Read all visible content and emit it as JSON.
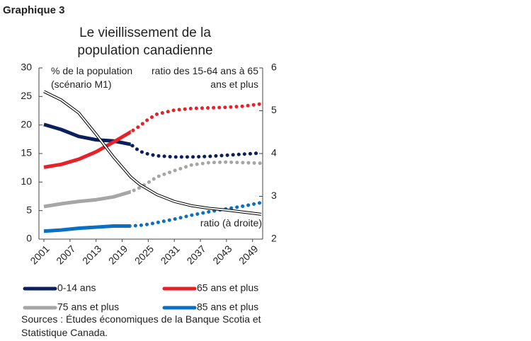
{
  "header": "Graphique 3",
  "chart_data": {
    "type": "line",
    "title": "Le vieillissement de la population canadienne",
    "y_annotation": "% de la population (scénario M1)",
    "y2_annotation": "ratio des 15-64 ans à 65 ans et plus",
    "line_annotation": "ratio (à droite)",
    "x": [
      2001,
      2005,
      2009,
      2013,
      2017,
      2021,
      2023,
      2025,
      2027,
      2031,
      2035,
      2039,
      2043,
      2047,
      2051
    ],
    "xlim": [
      2001,
      2051
    ],
    "xticks": [
      2001,
      2007,
      2013,
      2019,
      2025,
      2031,
      2037,
      2043,
      2049
    ],
    "ylim": [
      0,
      30
    ],
    "yticks": [
      0,
      5,
      10,
      15,
      20,
      25,
      30
    ],
    "y2lim": [
      2,
      6
    ],
    "y2ticks": [
      2,
      3,
      4,
      5,
      6
    ],
    "solid_until": 2021,
    "series": [
      {
        "name": "0-14 ans",
        "color": "#0b1f5c",
        "values": [
          20.1,
          19.2,
          18.0,
          17.4,
          17.2,
          16.6,
          15.4,
          14.9,
          14.6,
          14.4,
          14.4,
          14.5,
          14.7,
          14.9,
          15.1
        ]
      },
      {
        "name": "65 ans et plus",
        "color": "#e8202a",
        "values": [
          12.6,
          13.1,
          14.0,
          15.3,
          17.0,
          18.8,
          19.8,
          21.0,
          21.9,
          22.6,
          22.9,
          23.0,
          23.1,
          23.3,
          23.7
        ]
      },
      {
        "name": "75 ans et plus",
        "color": "#a6a6a6",
        "values": [
          5.7,
          6.2,
          6.6,
          6.9,
          7.4,
          8.3,
          9.0,
          9.9,
          10.9,
          12.0,
          13.0,
          13.4,
          13.5,
          13.4,
          13.3
        ]
      },
      {
        "name": "85 ans et plus",
        "color": "#0b6fc2",
        "values": [
          1.4,
          1.6,
          1.9,
          2.1,
          2.3,
          2.3,
          2.4,
          2.6,
          2.9,
          3.5,
          4.2,
          4.8,
          5.3,
          5.8,
          6.4
        ]
      },
      {
        "color": "#000000",
        "axis": "y2",
        "values": [
          5.45,
          5.25,
          4.95,
          4.45,
          3.92,
          3.45,
          3.28,
          3.16,
          3.04,
          2.88,
          2.78,
          2.72,
          2.68,
          2.63,
          2.58
        ]
      }
    ]
  },
  "source": "Sources : Études économiques de la Banque Scotia et Statistique Canada."
}
